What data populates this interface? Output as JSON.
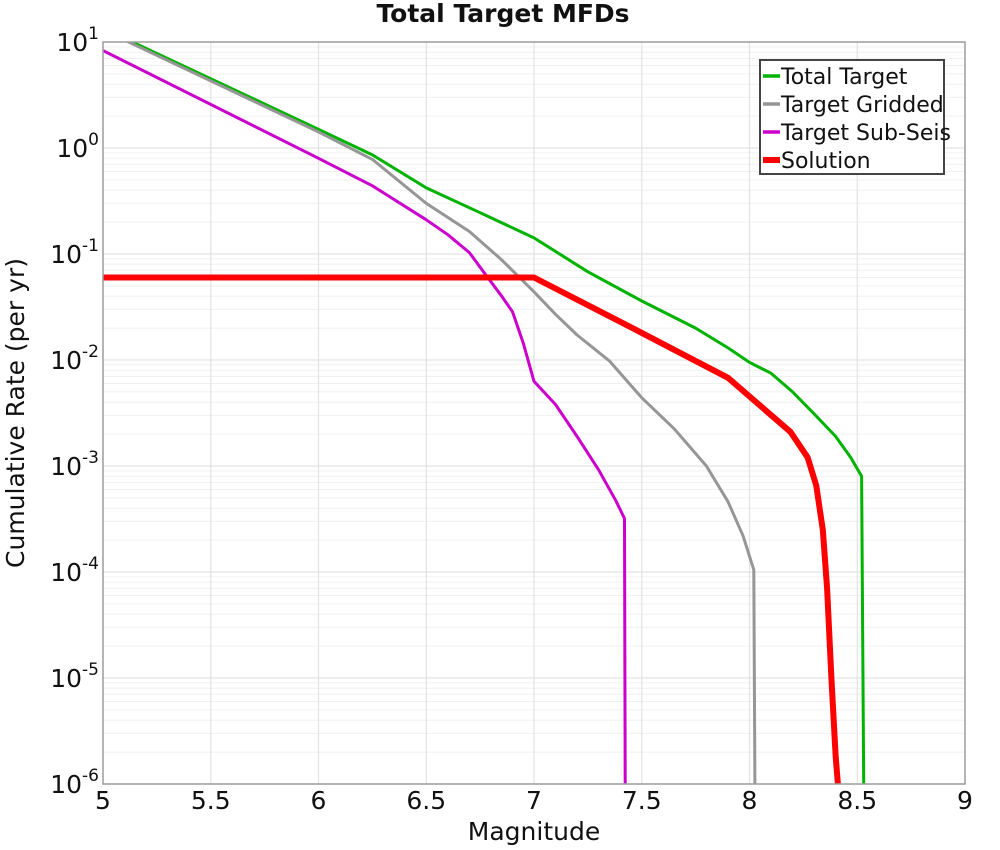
{
  "chart_data": {
    "type": "line",
    "title": "Total Target MFDs",
    "xlabel": "Magnitude",
    "ylabel": "Cumulative Rate (per yr)",
    "xscale": "linear",
    "yscale": "log",
    "xlim": [
      5,
      9
    ],
    "ylim": [
      1e-06,
      10
    ],
    "grid": {
      "major": true,
      "minor_log_y": true
    },
    "x_ticks": [
      {
        "v": 5,
        "label": "5"
      },
      {
        "v": 5.5,
        "label": "5.5"
      },
      {
        "v": 6,
        "label": "6"
      },
      {
        "v": 6.5,
        "label": "6.5"
      },
      {
        "v": 7,
        "label": "7"
      },
      {
        "v": 7.5,
        "label": "7.5"
      },
      {
        "v": 8,
        "label": "8"
      },
      {
        "v": 8.5,
        "label": "8.5"
      },
      {
        "v": 9,
        "label": "9"
      }
    ],
    "y_tick_base": "10",
    "y_tick_exponents": [
      1,
      0,
      -1,
      -2,
      -3,
      -4,
      -5,
      -6
    ],
    "legend": {
      "position": "top-right",
      "border": true
    },
    "series": [
      {
        "name": "Total Target",
        "slug": "total-target",
        "color": "#00b300",
        "width": 3,
        "points": [
          [
            5.0,
            13.5
          ],
          [
            6.0,
            1.5
          ],
          [
            6.25,
            0.86
          ],
          [
            6.5,
            0.42
          ],
          [
            6.75,
            0.245
          ],
          [
            7.0,
            0.142
          ],
          [
            7.25,
            0.068
          ],
          [
            7.5,
            0.036
          ],
          [
            7.75,
            0.02
          ],
          [
            7.9,
            0.013
          ],
          [
            8.0,
            0.0095
          ],
          [
            8.1,
            0.0075
          ],
          [
            8.2,
            0.005
          ],
          [
            8.3,
            0.0031
          ],
          [
            8.4,
            0.0019
          ],
          [
            8.47,
            0.0012
          ],
          [
            8.52,
            0.0008
          ],
          [
            8.53,
            1e-06
          ]
        ]
      },
      {
        "name": "Target Gridded",
        "slug": "target-gridded",
        "color": "#969696",
        "width": 3,
        "points": [
          [
            5.0,
            13.0
          ],
          [
            6.0,
            1.42
          ],
          [
            6.25,
            0.78
          ],
          [
            6.5,
            0.3
          ],
          [
            6.7,
            0.163
          ],
          [
            6.85,
            0.088
          ],
          [
            7.0,
            0.044
          ],
          [
            7.1,
            0.027
          ],
          [
            7.2,
            0.0172
          ],
          [
            7.35,
            0.0098
          ],
          [
            7.5,
            0.0044
          ],
          [
            7.65,
            0.00225
          ],
          [
            7.8,
            0.001
          ],
          [
            7.9,
            0.00046
          ],
          [
            7.97,
            0.00022
          ],
          [
            8.02,
            0.000105
          ],
          [
            8.025,
            1e-06
          ]
        ]
      },
      {
        "name": "Target Sub-Seis",
        "slug": "target-sub-seis",
        "color": "#cc00cc",
        "width": 3,
        "points": [
          [
            5.0,
            8.3
          ],
          [
            6.0,
            0.8
          ],
          [
            6.25,
            0.44
          ],
          [
            6.5,
            0.21
          ],
          [
            6.6,
            0.152
          ],
          [
            6.7,
            0.103
          ],
          [
            6.78,
            0.062
          ],
          [
            6.85,
            0.04
          ],
          [
            6.9,
            0.0285
          ],
          [
            6.95,
            0.0145
          ],
          [
            7.0,
            0.0063
          ],
          [
            7.1,
            0.0038
          ],
          [
            7.2,
            0.0019
          ],
          [
            7.3,
            0.00092
          ],
          [
            7.38,
            0.00047
          ],
          [
            7.42,
            0.00032
          ],
          [
            7.423,
            1e-06
          ]
        ]
      },
      {
        "name": "Solution",
        "slug": "solution",
        "color": "#ff0000",
        "width": 6,
        "points": [
          [
            5.0,
            0.06
          ],
          [
            7.0,
            0.06
          ],
          [
            7.5,
            0.018
          ],
          [
            7.9,
            0.0068
          ],
          [
            8.19,
            0.0021
          ],
          [
            8.27,
            0.0012
          ],
          [
            8.31,
            0.00065
          ],
          [
            8.34,
            0.00025
          ],
          [
            8.36,
            7e-05
          ],
          [
            8.38,
            1e-05
          ],
          [
            8.4,
            1.8e-06
          ],
          [
            8.41,
            1e-06
          ]
        ]
      }
    ]
  },
  "colors": {
    "background": "#ffffff",
    "plot_border": "#9e9e9e",
    "grid_major": "#e3e3e3",
    "grid_minor": "#f0f0f0",
    "legend_border": "#444444",
    "legend_fill": "#ffffff",
    "text": "#111111"
  }
}
